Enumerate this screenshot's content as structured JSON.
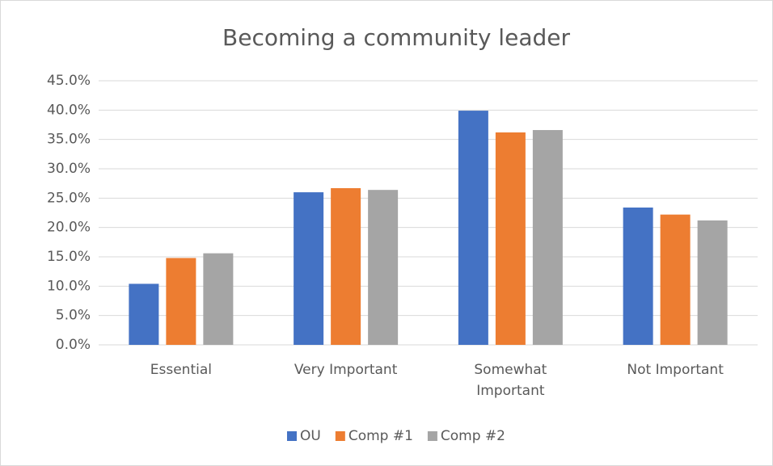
{
  "chart_data": {
    "type": "bar",
    "title": "Becoming a community leader",
    "categories": [
      "Essential",
      "Very Important",
      "Somewhat Important",
      "Not Important"
    ],
    "series": [
      {
        "name": "OU",
        "color": "#4472c4",
        "values": [
          10.4,
          26.0,
          39.9,
          23.4
        ]
      },
      {
        "name": "Comp #1",
        "color": "#ed7d31",
        "values": [
          14.8,
          26.7,
          36.2,
          22.2
        ]
      },
      {
        "name": "Comp #2",
        "color": "#a5a5a5",
        "values": [
          15.6,
          26.4,
          36.6,
          21.2
        ]
      }
    ],
    "ylim": [
      0,
      45
    ],
    "yticks": [
      {
        "value": 0,
        "label": "0.0%"
      },
      {
        "value": 5,
        "label": "5.0%"
      },
      {
        "value": 10,
        "label": "10.0%"
      },
      {
        "value": 15,
        "label": "15.0%"
      },
      {
        "value": 20,
        "label": "20.0%"
      },
      {
        "value": 25,
        "label": "25.0%"
      },
      {
        "value": 30,
        "label": "30.0%"
      },
      {
        "value": 35,
        "label": "35.0%"
      },
      {
        "value": 40,
        "label": "40.0%"
      },
      {
        "value": 45,
        "label": "45.0%"
      }
    ],
    "grid": true,
    "legend": "bottom"
  }
}
